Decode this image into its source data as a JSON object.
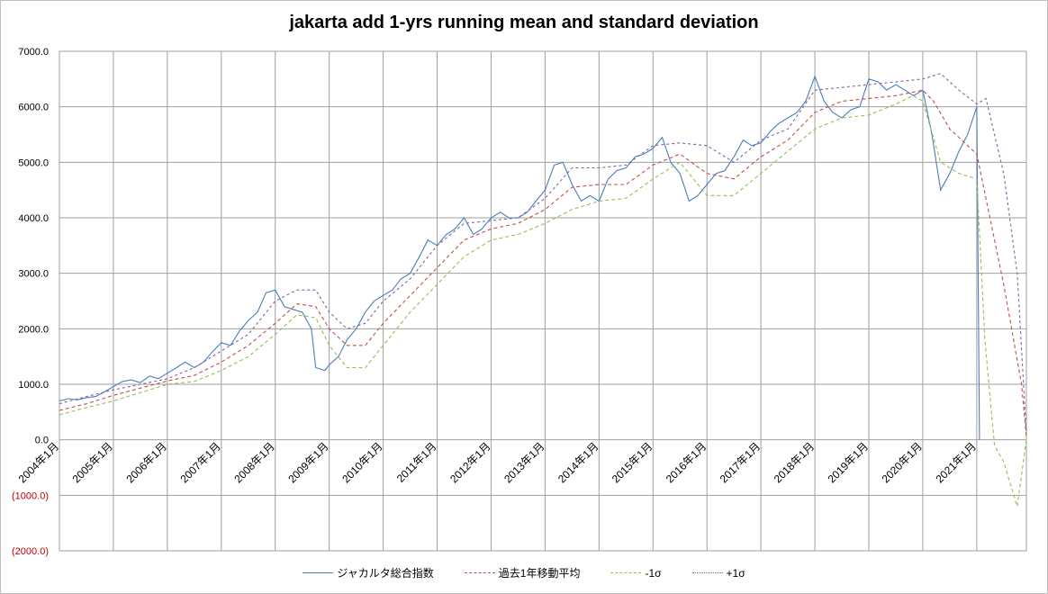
{
  "chart_data": {
    "type": "line",
    "title": "jakarta add 1-yrs running mean and standard deviation",
    "xlabel": "",
    "ylabel": "",
    "ylim": [
      -2000,
      7000
    ],
    "y_ticks": [
      "7000.0",
      "6000.0",
      "5000.0",
      "4000.0",
      "3000.0",
      "2000.0",
      "1000.0",
      "0.0",
      "(1000.0)",
      "(2000.0)"
    ],
    "x_labels": [
      "2004年1月",
      "2005年1月",
      "2006年1月",
      "2007年1月",
      "2008年1月",
      "2009年1月",
      "2010年1月",
      "2011年1月",
      "2012年1月",
      "2013年1月",
      "2014年1月",
      "2015年1月",
      "2016年1月",
      "2017年1月",
      "2018年1月",
      "2019年1月",
      "2020年1月",
      "2021年1月"
    ],
    "x_start_year": 2004,
    "x_end_year": 2021.92,
    "grid": true,
    "legend_position": "bottom",
    "series": [
      {
        "name": "ジャカルタ総合指数",
        "color": "#4a7ebb",
        "dash": "",
        "points": [
          [
            2004.0,
            700
          ],
          [
            2004.17,
            740
          ],
          [
            2004.33,
            720
          ],
          [
            2004.5,
            760
          ],
          [
            2004.67,
            780
          ],
          [
            2004.83,
            860
          ],
          [
            2005.0,
            960
          ],
          [
            2005.17,
            1050
          ],
          [
            2005.33,
            1080
          ],
          [
            2005.5,
            1030
          ],
          [
            2005.67,
            1150
          ],
          [
            2005.83,
            1100
          ],
          [
            2006.0,
            1200
          ],
          [
            2006.17,
            1300
          ],
          [
            2006.33,
            1400
          ],
          [
            2006.5,
            1300
          ],
          [
            2006.67,
            1400
          ],
          [
            2006.83,
            1580
          ],
          [
            2007.0,
            1750
          ],
          [
            2007.17,
            1700
          ],
          [
            2007.33,
            1950
          ],
          [
            2007.5,
            2150
          ],
          [
            2007.67,
            2300
          ],
          [
            2007.83,
            2650
          ],
          [
            2008.0,
            2700
          ],
          [
            2008.17,
            2400
          ],
          [
            2008.33,
            2350
          ],
          [
            2008.5,
            2300
          ],
          [
            2008.67,
            2000
          ],
          [
            2008.75,
            1300
          ],
          [
            2008.92,
            1250
          ],
          [
            2009.0,
            1350
          ],
          [
            2009.17,
            1500
          ],
          [
            2009.33,
            1800
          ],
          [
            2009.5,
            2000
          ],
          [
            2009.67,
            2300
          ],
          [
            2009.83,
            2500
          ],
          [
            2010.0,
            2600
          ],
          [
            2010.17,
            2700
          ],
          [
            2010.33,
            2900
          ],
          [
            2010.5,
            3000
          ],
          [
            2010.67,
            3300
          ],
          [
            2010.83,
            3600
          ],
          [
            2011.0,
            3500
          ],
          [
            2011.17,
            3700
          ],
          [
            2011.33,
            3800
          ],
          [
            2011.5,
            4000
          ],
          [
            2011.67,
            3700
          ],
          [
            2011.83,
            3800
          ],
          [
            2012.0,
            4000
          ],
          [
            2012.17,
            4100
          ],
          [
            2012.33,
            4000
          ],
          [
            2012.5,
            4000
          ],
          [
            2012.67,
            4100
          ],
          [
            2012.83,
            4300
          ],
          [
            2013.0,
            4500
          ],
          [
            2013.17,
            4950
          ],
          [
            2013.33,
            5000
          ],
          [
            2013.5,
            4600
          ],
          [
            2013.67,
            4300
          ],
          [
            2013.83,
            4400
          ],
          [
            2014.0,
            4300
          ],
          [
            2014.17,
            4700
          ],
          [
            2014.33,
            4850
          ],
          [
            2014.5,
            4900
          ],
          [
            2014.67,
            5100
          ],
          [
            2014.83,
            5150
          ],
          [
            2015.0,
            5250
          ],
          [
            2015.17,
            5450
          ],
          [
            2015.33,
            5000
          ],
          [
            2015.5,
            4800
          ],
          [
            2015.67,
            4300
          ],
          [
            2015.83,
            4400
          ],
          [
            2016.0,
            4600
          ],
          [
            2016.17,
            4800
          ],
          [
            2016.33,
            4850
          ],
          [
            2016.5,
            5100
          ],
          [
            2016.67,
            5400
          ],
          [
            2016.83,
            5300
          ],
          [
            2017.0,
            5350
          ],
          [
            2017.17,
            5550
          ],
          [
            2017.33,
            5700
          ],
          [
            2017.5,
            5800
          ],
          [
            2017.67,
            5900
          ],
          [
            2017.83,
            6100
          ],
          [
            2018.0,
            6550
          ],
          [
            2018.17,
            6100
          ],
          [
            2018.33,
            5900
          ],
          [
            2018.5,
            5800
          ],
          [
            2018.67,
            5950
          ],
          [
            2018.83,
            6000
          ],
          [
            2019.0,
            6500
          ],
          [
            2019.17,
            6450
          ],
          [
            2019.33,
            6300
          ],
          [
            2019.5,
            6400
          ],
          [
            2019.67,
            6300
          ],
          [
            2019.83,
            6200
          ],
          [
            2020.0,
            6300
          ],
          [
            2020.17,
            5500
          ],
          [
            2020.33,
            4500
          ],
          [
            2020.5,
            4800
          ],
          [
            2020.67,
            5200
          ],
          [
            2020.83,
            5500
          ],
          [
            2021.0,
            6000
          ],
          [
            2021.05,
            0
          ]
        ]
      },
      {
        "name": "過去1年移動平均",
        "color": "#c0504d",
        "dash": "4,3",
        "points": [
          [
            2004.0,
            530
          ],
          [
            2004.5,
            650
          ],
          [
            2005.0,
            800
          ],
          [
            2005.5,
            930
          ],
          [
            2006.0,
            1060
          ],
          [
            2006.5,
            1160
          ],
          [
            2007.0,
            1400
          ],
          [
            2007.5,
            1700
          ],
          [
            2008.0,
            2100
          ],
          [
            2008.4,
            2450
          ],
          [
            2008.75,
            2400
          ],
          [
            2009.0,
            2000
          ],
          [
            2009.33,
            1700
          ],
          [
            2009.67,
            1700
          ],
          [
            2010.0,
            2100
          ],
          [
            2010.5,
            2600
          ],
          [
            2011.0,
            3100
          ],
          [
            2011.5,
            3600
          ],
          [
            2012.0,
            3800
          ],
          [
            2012.5,
            3900
          ],
          [
            2013.0,
            4150
          ],
          [
            2013.5,
            4550
          ],
          [
            2014.0,
            4600
          ],
          [
            2014.5,
            4600
          ],
          [
            2015.0,
            4950
          ],
          [
            2015.5,
            5150
          ],
          [
            2016.0,
            4800
          ],
          [
            2016.5,
            4700
          ],
          [
            2017.0,
            5100
          ],
          [
            2017.5,
            5400
          ],
          [
            2018.0,
            5900
          ],
          [
            2018.5,
            6100
          ],
          [
            2019.0,
            6150
          ],
          [
            2019.5,
            6200
          ],
          [
            2020.0,
            6300
          ],
          [
            2020.2,
            6100
          ],
          [
            2020.5,
            5600
          ],
          [
            2020.83,
            5300
          ],
          [
            2021.0,
            5150
          ],
          [
            2021.33,
            3600
          ],
          [
            2021.5,
            2800
          ],
          [
            2021.83,
            1000
          ],
          [
            2021.92,
            50
          ]
        ]
      },
      {
        "name": "-1σ",
        "color": "#9bbb59",
        "dash": "4,3",
        "points": [
          [
            2004.0,
            450
          ],
          [
            2004.5,
            580
          ],
          [
            2005.0,
            700
          ],
          [
            2005.5,
            850
          ],
          [
            2006.0,
            1000
          ],
          [
            2006.5,
            1050
          ],
          [
            2007.0,
            1250
          ],
          [
            2007.5,
            1500
          ],
          [
            2008.0,
            1900
          ],
          [
            2008.4,
            2250
          ],
          [
            2008.75,
            2200
          ],
          [
            2009.0,
            1700
          ],
          [
            2009.33,
            1300
          ],
          [
            2009.67,
            1300
          ],
          [
            2010.0,
            1700
          ],
          [
            2010.5,
            2300
          ],
          [
            2011.0,
            2800
          ],
          [
            2011.5,
            3300
          ],
          [
            2012.0,
            3600
          ],
          [
            2012.5,
            3700
          ],
          [
            2013.0,
            3900
          ],
          [
            2013.5,
            4150
          ],
          [
            2014.0,
            4300
          ],
          [
            2014.5,
            4350
          ],
          [
            2015.0,
            4700
          ],
          [
            2015.5,
            5000
          ],
          [
            2016.0,
            4400
          ],
          [
            2016.5,
            4400
          ],
          [
            2017.0,
            4800
          ],
          [
            2017.5,
            5200
          ],
          [
            2018.0,
            5600
          ],
          [
            2018.5,
            5800
          ],
          [
            2019.0,
            5850
          ],
          [
            2019.5,
            6050
          ],
          [
            2019.83,
            6200
          ],
          [
            2020.0,
            6100
          ],
          [
            2020.33,
            5000
          ],
          [
            2020.67,
            4800
          ],
          [
            2021.0,
            4700
          ],
          [
            2021.15,
            1800
          ],
          [
            2021.33,
            -100
          ],
          [
            2021.5,
            -400
          ],
          [
            2021.75,
            -1200
          ],
          [
            2021.92,
            0
          ]
        ]
      },
      {
        "name": "+1σ",
        "color": "#8064a2",
        "dash": "3,3",
        "points": [
          [
            2004.0,
            650
          ],
          [
            2004.5,
            780
          ],
          [
            2005.0,
            900
          ],
          [
            2005.5,
            1000
          ],
          [
            2006.0,
            1100
          ],
          [
            2006.5,
            1300
          ],
          [
            2007.0,
            1600
          ],
          [
            2007.5,
            1900
          ],
          [
            2008.0,
            2500
          ],
          [
            2008.4,
            2700
          ],
          [
            2008.75,
            2700
          ],
          [
            2009.0,
            2300
          ],
          [
            2009.33,
            2000
          ],
          [
            2009.67,
            2100
          ],
          [
            2010.0,
            2500
          ],
          [
            2010.5,
            2900
          ],
          [
            2011.0,
            3500
          ],
          [
            2011.5,
            3900
          ],
          [
            2012.0,
            3950
          ],
          [
            2012.5,
            4000
          ],
          [
            2013.0,
            4350
          ],
          [
            2013.5,
            4900
          ],
          [
            2014.0,
            4900
          ],
          [
            2014.5,
            4950
          ],
          [
            2015.0,
            5300
          ],
          [
            2015.5,
            5350
          ],
          [
            2016.0,
            5300
          ],
          [
            2016.5,
            5000
          ],
          [
            2017.0,
            5400
          ],
          [
            2017.5,
            5600
          ],
          [
            2018.0,
            6300
          ],
          [
            2018.5,
            6350
          ],
          [
            2019.0,
            6400
          ],
          [
            2019.5,
            6450
          ],
          [
            2020.0,
            6500
          ],
          [
            2020.33,
            6600
          ],
          [
            2020.67,
            6300
          ],
          [
            2021.0,
            6050
          ],
          [
            2021.17,
            6150
          ],
          [
            2021.5,
            4800
          ],
          [
            2021.75,
            3000
          ],
          [
            2021.92,
            100
          ]
        ]
      }
    ]
  }
}
